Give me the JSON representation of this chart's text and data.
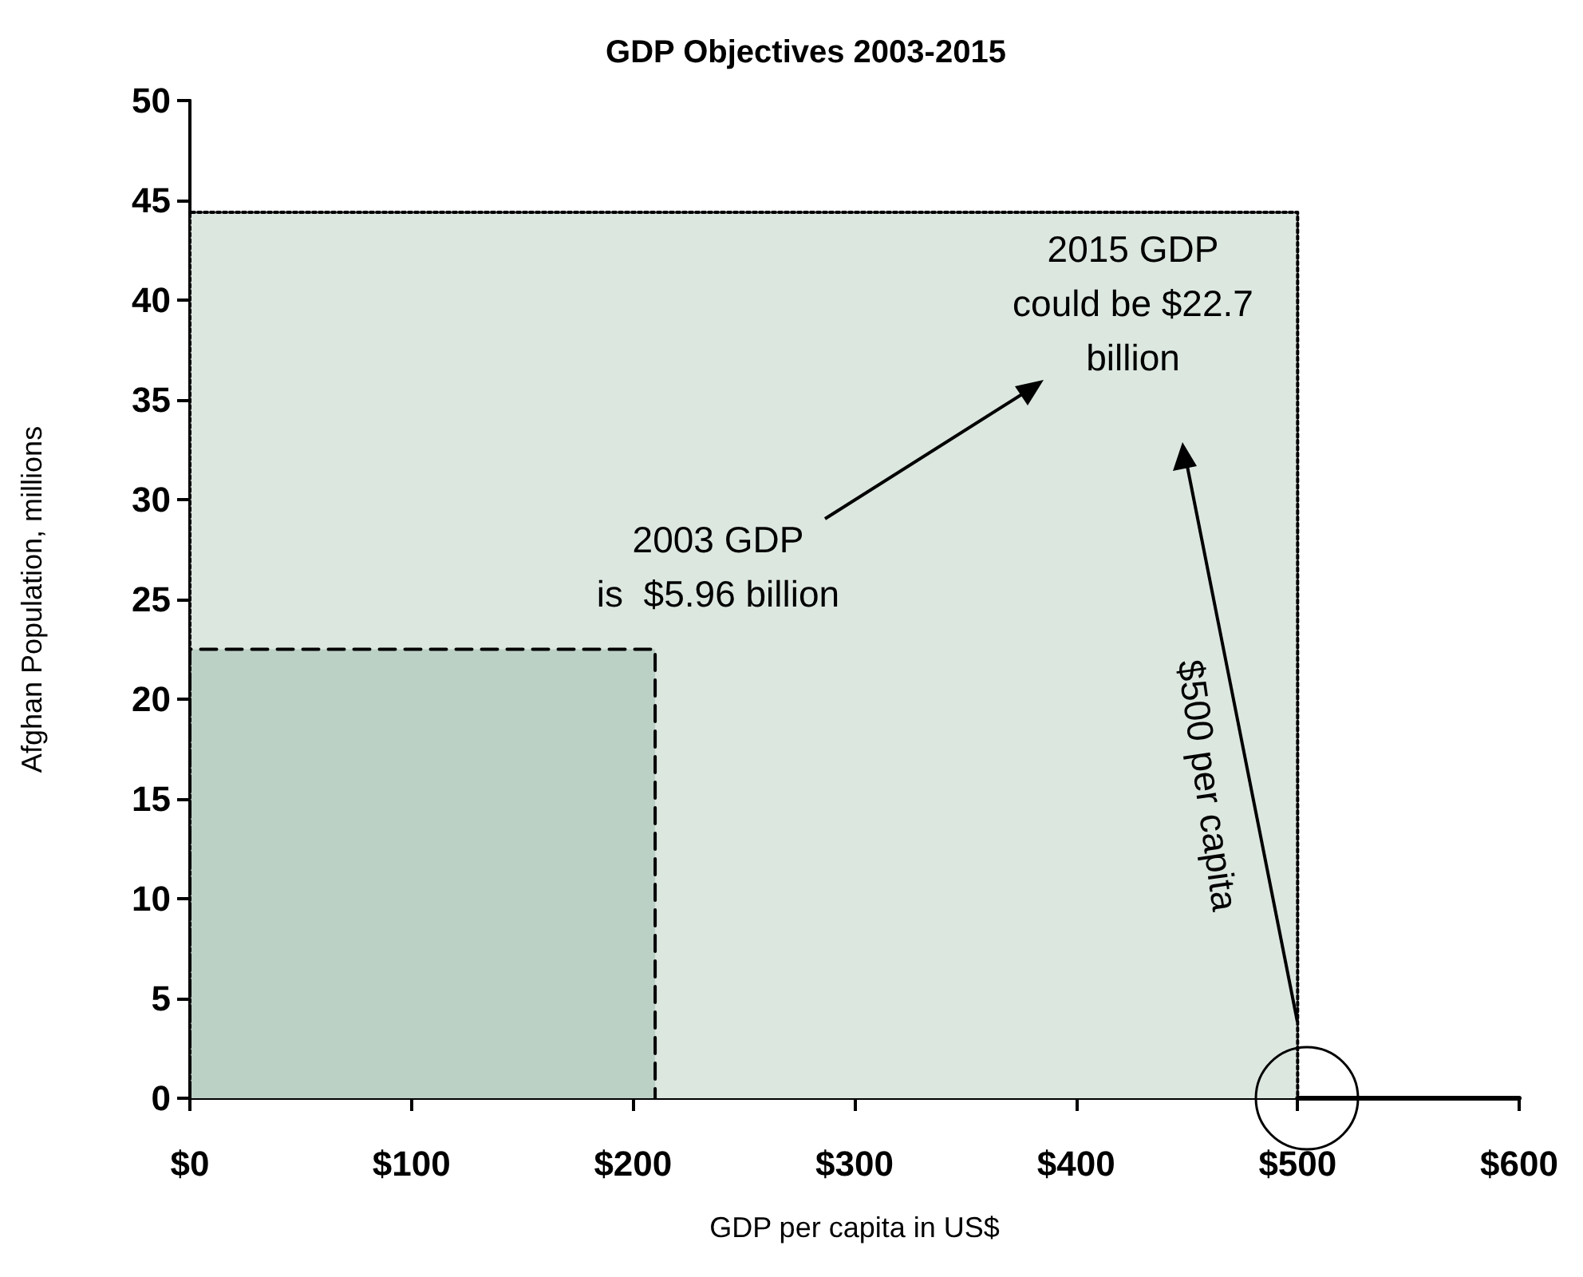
{
  "chart_data": {
    "type": "area",
    "title": "GDP Objectives 2003-2015",
    "xlabel": "GDP per capita in US$",
    "ylabel": "Afghan Population, millions",
    "xlim": [
      0,
      600
    ],
    "xticks": [
      {
        "value": 0,
        "label": "$0"
      },
      {
        "value": 100,
        "label": "$100"
      },
      {
        "value": 200,
        "label": "$200"
      },
      {
        "value": 300,
        "label": "$300"
      },
      {
        "value": 400,
        "label": "$400"
      },
      {
        "value": 500,
        "label": "$500"
      },
      {
        "value": 600,
        "label": "$600"
      }
    ],
    "ylim": [
      0,
      50
    ],
    "yticks": [
      0,
      5,
      10,
      15,
      20,
      25,
      30,
      35,
      40,
      45,
      50
    ],
    "series": [
      {
        "x": [
          0,
          0,
          500,
          500
        ],
        "values": [
          0,
          44.4,
          44.4,
          0
        ],
        "color": "#dce7e0",
        "line_style": "dotted"
      },
      {
        "x": [
          0,
          0,
          210,
          210
        ],
        "values": [
          0,
          22.5,
          22.5,
          0
        ],
        "color": "#bcd1c6",
        "line_style": "dashed"
      },
      {
        "type": "line",
        "x": [
          500,
          600
        ],
        "values": [
          0,
          0
        ],
        "color": "#000000",
        "line_style": "solid"
      }
    ],
    "annotations": [
      "2003 GDP\nis  $5.96 billion",
      "2015 GDP\ncould be $22.7\nbillion",
      "$500 per capita"
    ],
    "marker": "none",
    "grid": false
  }
}
